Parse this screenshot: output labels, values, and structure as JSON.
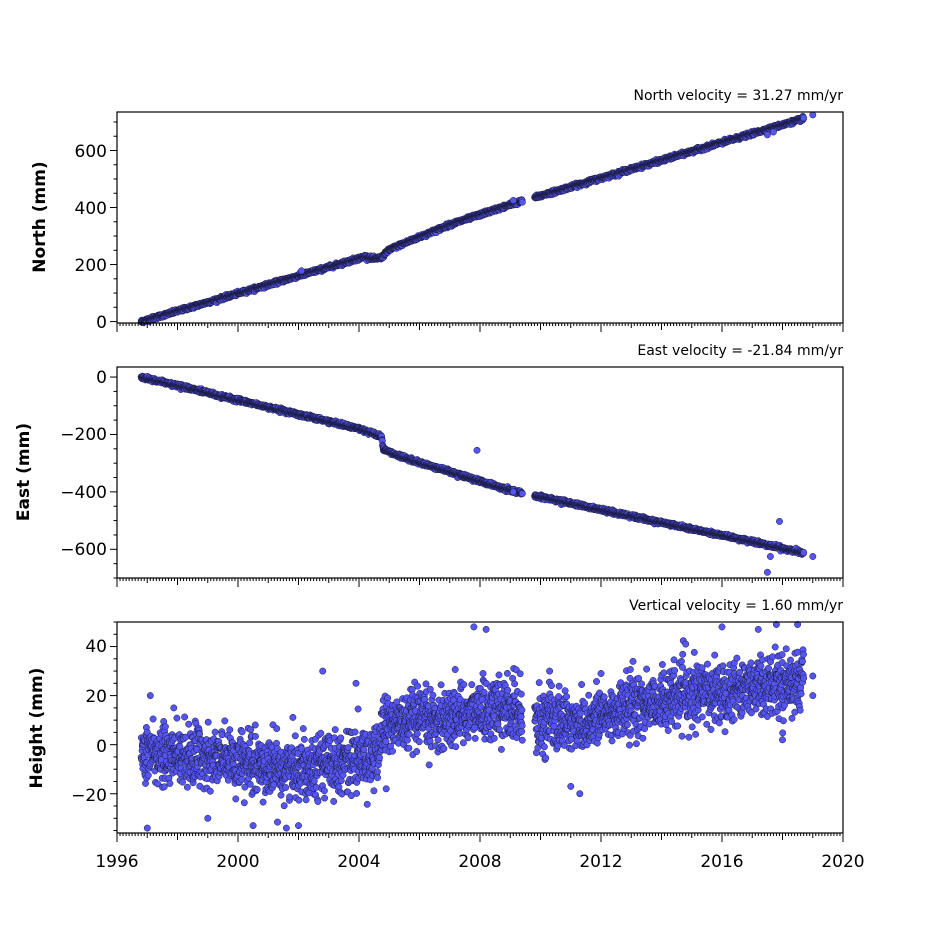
{
  "colors": {
    "marker_fill": "#5555f2",
    "marker_edge": "#1a1a40",
    "axes": "#000000"
  },
  "chart_data": [
    {
      "type": "scatter",
      "title": "North velocity = 31.27 mm/yr",
      "xlabel": "",
      "ylabel": "North (mm)",
      "xlim": [
        1996,
        2020
      ],
      "ylim": [
        -5,
        735
      ],
      "yticks": [
        0,
        200,
        400,
        600
      ],
      "ytick_labels": [
        "0",
        "200",
        "400",
        "600"
      ],
      "series": [
        {
          "breakpoints": [
            [
              1996.8,
              0
            ],
            [
              2004.2,
              228
            ],
            [
              2004.5,
              220
            ],
            [
              2004.75,
              225
            ],
            [
              2005.0,
              252
            ],
            [
              2005.5,
              275
            ],
            [
              2007.0,
              340
            ],
            [
              2009.0,
              410
            ],
            [
              2018.7,
              712
            ],
            [
              2019.0,
              725
            ]
          ],
          "gaps": [
            [
              2009.4,
              2009.8
            ]
          ],
          "scatter_sd": 3,
          "outliers": [
            [
              2002.1,
              178
            ],
            [
              2009.1,
              425
            ],
            [
              2017.5,
              655
            ],
            [
              2017.7,
              665
            ],
            [
              2019.0,
              725
            ]
          ]
        }
      ]
    },
    {
      "type": "scatter",
      "title": "East velocity = -21.84 mm/yr",
      "xlabel": "",
      "ylabel": "East (mm)",
      "xlim": [
        1996,
        2020
      ],
      "ylim": [
        -700,
        35
      ],
      "yticks": [
        0,
        -200,
        -400,
        -600
      ],
      "ytick_labels": [
        "0",
        "−200",
        "−400",
        "−600"
      ],
      "series": [
        {
          "breakpoints": [
            [
              1996.8,
              0
            ],
            [
              2004.0,
              -180
            ],
            [
              2004.75,
              -208
            ],
            [
              2004.8,
              -250
            ],
            [
              2005.3,
              -275
            ],
            [
              2007.0,
              -330
            ],
            [
              2009.0,
              -395
            ],
            [
              2018.7,
              -612
            ],
            [
              2019.0,
              -625
            ]
          ],
          "gaps": [
            [
              2009.4,
              2009.8
            ]
          ],
          "scatter_sd": 3,
          "outliers": [
            [
              2007.9,
              -255
            ],
            [
              2017.5,
              -680
            ],
            [
              2017.6,
              -625
            ],
            [
              2017.9,
              -503
            ],
            [
              2009.1,
              -400
            ],
            [
              2019.0,
              -625
            ]
          ]
        }
      ]
    },
    {
      "type": "scatter",
      "title": "Vertical velocity = 1.60 mm/yr",
      "xlabel": "",
      "ylabel": "Height (mm)",
      "xlim": [
        1996,
        2020
      ],
      "ylim": [
        -36,
        50
      ],
      "yticks": [
        -20,
        0,
        20,
        40
      ],
      "ytick_labels": [
        "−20",
        "0",
        "20",
        "40"
      ],
      "xticks": [
        1996,
        2000,
        2004,
        2008,
        2012,
        2016,
        2020
      ],
      "xtick_labels": [
        "1996",
        "2000",
        "2004",
        "2008",
        "2012",
        "2016",
        "2020"
      ],
      "series": [
        {
          "breakpoints": [
            [
              1996.8,
              -2
            ],
            [
              1998.0,
              -4
            ],
            [
              1999.5,
              -6
            ],
            [
              2001.0,
              -10
            ],
            [
              2002.5,
              -8
            ],
            [
              2004.6,
              -5
            ],
            [
              2004.8,
              8
            ],
            [
              2006.5,
              10
            ],
            [
              2008.0,
              14
            ],
            [
              2009.3,
              14
            ],
            [
              2010.0,
              10
            ],
            [
              2011.5,
              9
            ],
            [
              2013.0,
              16
            ],
            [
              2015.0,
              20
            ],
            [
              2017.0,
              24
            ],
            [
              2018.7,
              26
            ],
            [
              2019.0,
              24
            ]
          ],
          "gaps": [
            [
              2009.4,
              2009.8
            ]
          ],
          "scatter_sd": 6,
          "outliers": [
            [
              1997.0,
              -34
            ],
            [
              1997.1,
              20
            ],
            [
              2002.8,
              30
            ],
            [
              2003.9,
              25
            ],
            [
              2004.9,
              -18
            ],
            [
              2007.8,
              48
            ],
            [
              2008.2,
              47
            ],
            [
              2010.3,
              30
            ],
            [
              2011.0,
              -17
            ],
            [
              2011.3,
              -20
            ],
            [
              2012.0,
              29
            ],
            [
              2014.8,
              41
            ],
            [
              2016.0,
              48
            ],
            [
              2017.2,
              47
            ],
            [
              2017.8,
              49
            ],
            [
              2018.5,
              49
            ],
            [
              2018.0,
              2
            ],
            [
              1999.0,
              -30
            ],
            [
              2000.5,
              -33
            ],
            [
              2001.6,
              -34
            ],
            [
              2002.0,
              -33
            ],
            [
              2019.0,
              28
            ],
            [
              2019.0,
              20
            ]
          ]
        }
      ]
    }
  ]
}
